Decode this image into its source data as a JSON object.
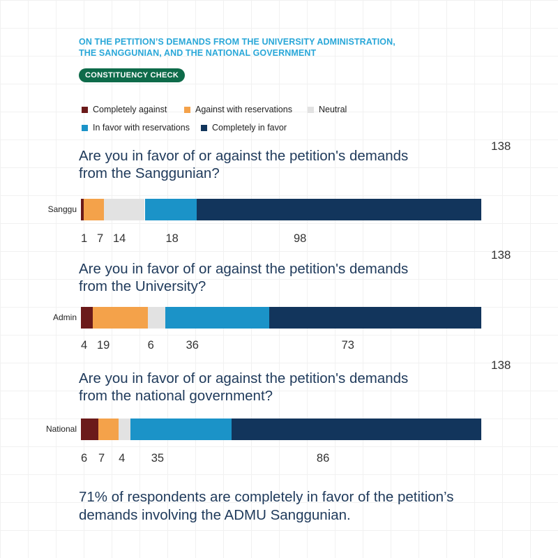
{
  "header": {
    "title_line1": "ON THE PETITION’S DEMANDS FROM THE UNIVERSITY ADMINISTRATION,",
    "title_line2": "THE SANGGUNIAN, AND THE NATIONAL GOVERNMENT",
    "badge": "CONSTITUENCY CHECK"
  },
  "colors": {
    "completely_against": "#6b1a1a",
    "against_with_reservations": "#f4a24a",
    "neutral": "#e2e2e2",
    "in_favor_with_reservations": "#1b93c8",
    "completely_in_favor": "#12355c"
  },
  "chart_data": {
    "type": "bar",
    "orientation": "horizontal",
    "stacked": true,
    "legend": {
      "placement": "top-left",
      "entries": [
        "Completely against",
        "Against with reservations",
        "Neutral",
        "In favor with reservations",
        "Completely in favor"
      ]
    },
    "series_names": [
      "Completely against",
      "Against with reservations",
      "Neutral",
      "In favor with reservations",
      "Completely in favor"
    ],
    "panels": [
      {
        "question_line1": "Are you in favor of or against the petition's demands",
        "question_line2": "from the Sanggunian?",
        "category": "Sanggu",
        "total": "138",
        "values": [
          1,
          7,
          14,
          18,
          98
        ]
      },
      {
        "question_line1": "Are you in favor of or against the petition's demands",
        "question_line2": "from the University?",
        "category": "Admin",
        "total": "138",
        "values": [
          4,
          19,
          6,
          36,
          73
        ]
      },
      {
        "question_line1": "Are you in favor of or against the petition's demands",
        "question_line2": "from the national government?",
        "category": "National",
        "total": "138",
        "values": [
          6,
          7,
          4,
          35,
          86
        ]
      }
    ]
  },
  "footer": {
    "line1": "71% of respondents are completely in favor of the petition’s",
    "line2": "demands involving the ADMU Sanggunian."
  }
}
